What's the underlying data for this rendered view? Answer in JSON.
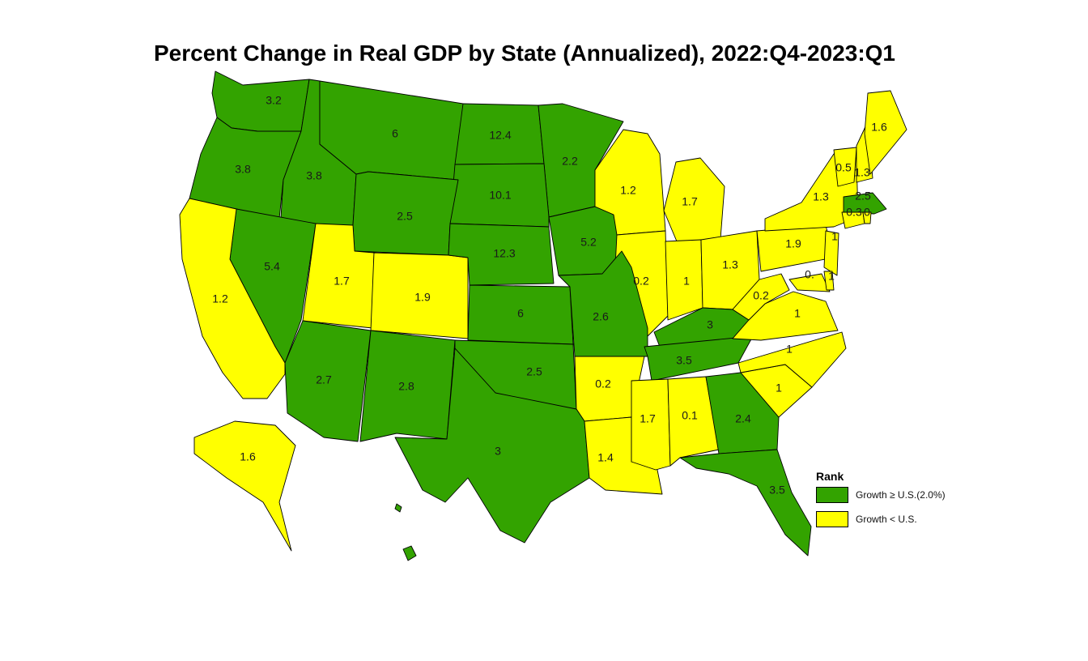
{
  "title": "Percent Change in Real GDP by State (Annualized), 2022:Q4-2023:Q1",
  "colors": {
    "above": "#33a300",
    "below": "#ffff00"
  },
  "legend": {
    "title": "Rank",
    "items": [
      {
        "key": "above",
        "label": "Growth ≥ U.S.(2.0%)"
      },
      {
        "key": "below",
        "label": "Growth < U.S."
      }
    ]
  },
  "states": [
    {
      "code": "WA",
      "value": "3.2",
      "rank": "above"
    },
    {
      "code": "OR",
      "value": "3.8",
      "rank": "above"
    },
    {
      "code": "ID",
      "value": "3.8",
      "rank": "above"
    },
    {
      "code": "MT",
      "value": "6",
      "rank": "above"
    },
    {
      "code": "ND",
      "value": "12.4",
      "rank": "above"
    },
    {
      "code": "MN",
      "value": "2.2",
      "rank": "above"
    },
    {
      "code": "SD",
      "value": "10.1",
      "rank": "above"
    },
    {
      "code": "WY",
      "value": "2.5",
      "rank": "above"
    },
    {
      "code": "NV",
      "value": "5.4",
      "rank": "above"
    },
    {
      "code": "CA",
      "value": "1.2",
      "rank": "below"
    },
    {
      "code": "UT",
      "value": "1.7",
      "rank": "below"
    },
    {
      "code": "CO",
      "value": "1.9",
      "rank": "below"
    },
    {
      "code": "NE",
      "value": "12.3",
      "rank": "above"
    },
    {
      "code": "IA",
      "value": "5.2",
      "rank": "above"
    },
    {
      "code": "WI",
      "value": "1.2",
      "rank": "below"
    },
    {
      "code": "MI",
      "value": "1.7",
      "rank": "below"
    },
    {
      "code": "IL",
      "value": "0.2",
      "rank": "below"
    },
    {
      "code": "IN",
      "value": "1",
      "rank": "below"
    },
    {
      "code": "OH",
      "value": "1.3",
      "rank": "below"
    },
    {
      "code": "KS",
      "value": "6",
      "rank": "above"
    },
    {
      "code": "MO",
      "value": "2.6",
      "rank": "above"
    },
    {
      "code": "KY",
      "value": "3",
      "rank": "above"
    },
    {
      "code": "AZ",
      "value": "2.7",
      "rank": "above"
    },
    {
      "code": "NM",
      "value": "2.8",
      "rank": "above"
    },
    {
      "code": "OK",
      "value": "2.5",
      "rank": "above"
    },
    {
      "code": "AR",
      "value": "0.2",
      "rank": "below"
    },
    {
      "code": "TN",
      "value": "3.5",
      "rank": "above"
    },
    {
      "code": "TX",
      "value": "3",
      "rank": "above"
    },
    {
      "code": "LA",
      "value": "1.4",
      "rank": "below"
    },
    {
      "code": "MS",
      "value": "1.7",
      "rank": "below"
    },
    {
      "code": "AL",
      "value": "0.1",
      "rank": "below"
    },
    {
      "code": "GA",
      "value": "2.4",
      "rank": "above"
    },
    {
      "code": "FL",
      "value": "3.5",
      "rank": "above"
    },
    {
      "code": "SC",
      "value": "1",
      "rank": "below"
    },
    {
      "code": "NC",
      "value": "1",
      "rank": "below"
    },
    {
      "code": "VA",
      "value": "1",
      "rank": "below"
    },
    {
      "code": "WV",
      "value": "0.2",
      "rank": "below"
    },
    {
      "code": "PA",
      "value": "1.9",
      "rank": "below"
    },
    {
      "code": "NY",
      "value": "1.3",
      "rank": "below"
    },
    {
      "code": "VT",
      "value": "0.5",
      "rank": "below"
    },
    {
      "code": "NH",
      "value": "1.3",
      "rank": "below"
    },
    {
      "code": "ME",
      "value": "1.6",
      "rank": "below"
    },
    {
      "code": "MA",
      "value": "2.5",
      "rank": "above"
    },
    {
      "code": "CT",
      "value": "0.3",
      "rank": "below"
    },
    {
      "code": "RI",
      "value": "0",
      "rank": "below"
    },
    {
      "code": "NJ",
      "value": "1",
      "rank": "below"
    },
    {
      "code": "MD",
      "value": "0.",
      "rank": "below"
    },
    {
      "code": "DE",
      "value": "1",
      "rank": "below"
    },
    {
      "code": "AK",
      "value": "1.6",
      "rank": "below"
    },
    {
      "code": "HI",
      "value": "",
      "rank": "above"
    }
  ]
}
